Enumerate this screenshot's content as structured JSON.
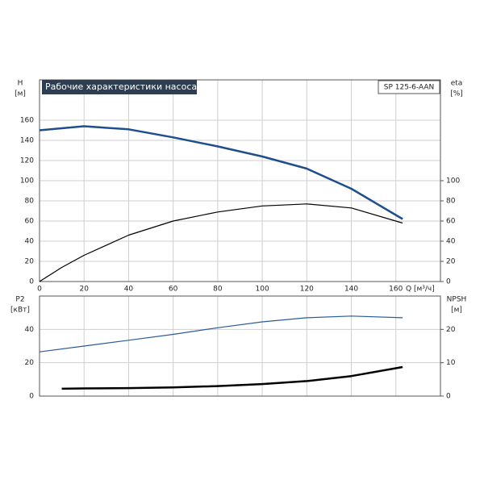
{
  "chart_data": [
    {
      "type": "line",
      "title": "Рабочие характеристики насоса",
      "model": "SP 125-6-AAN",
      "ylabel": "H",
      "yunit": "[м]",
      "y2label": "eta",
      "y2unit": "[%]",
      "xlabel": "Q [м³/ч]",
      "xlim": [
        0,
        180
      ],
      "xticks": [
        0,
        20,
        40,
        60,
        80,
        100,
        120,
        140,
        160
      ],
      "ylim": [
        0,
        200
      ],
      "yticks": [
        0,
        20,
        40,
        60,
        80,
        100,
        120,
        140,
        160
      ],
      "y2lim": [
        0,
        200
      ],
      "y2ticks": [
        0,
        20,
        40,
        60,
        80,
        100
      ],
      "grid": true,
      "series": [
        {
          "color": "#1f4e8c",
          "linewidth": 2.5,
          "x": [
            0,
            20,
            40,
            60,
            80,
            100,
            120,
            140,
            163
          ],
          "values": [
            150,
            154,
            151,
            143,
            134,
            124,
            112,
            92,
            62
          ]
        },
        {
          "color": "#000000",
          "linewidth": 1.2,
          "axis": "y2",
          "x": [
            0,
            10,
            20,
            40,
            60,
            80,
            100,
            120,
            140,
            163
          ],
          "values": [
            0,
            14,
            26,
            46,
            60,
            69,
            75,
            77,
            73,
            58
          ]
        }
      ]
    },
    {
      "type": "line",
      "ylabel": "P2",
      "yunit": "[кВт]",
      "y2label": "NPSH",
      "y2unit": "[м]",
      "xlim": [
        0,
        180
      ],
      "ylim": [
        0,
        60
      ],
      "yticks": [
        0,
        20,
        40
      ],
      "y2lim": [
        0,
        30
      ],
      "y2ticks": [
        0,
        10,
        20
      ],
      "grid": true,
      "series": [
        {
          "color": "#2a5c9a",
          "linewidth": 1.2,
          "x": [
            0,
            20,
            40,
            60,
            80,
            100,
            120,
            140,
            163
          ],
          "values": [
            26.5,
            30,
            33.5,
            37,
            41,
            44.5,
            47,
            48,
            47
          ]
        },
        {
          "color": "#000000",
          "linewidth": 2.5,
          "axis": "y2",
          "x": [
            10,
            20,
            40,
            60,
            80,
            100,
            120,
            140,
            163
          ],
          "values": [
            2.2,
            2.3,
            2.4,
            2.6,
            3,
            3.6,
            4.5,
            6,
            8.7
          ]
        }
      ]
    }
  ]
}
